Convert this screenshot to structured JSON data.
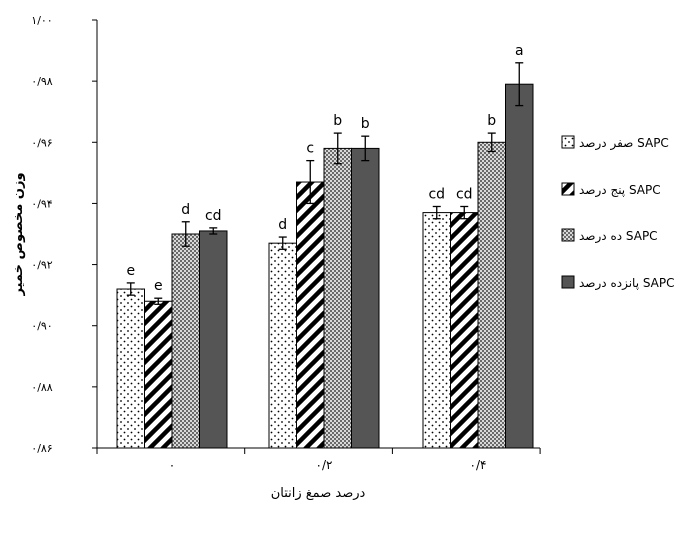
{
  "colors": {
    "axis": "#000000",
    "bar_stroke": "#000000",
    "series_fill": [
      "#ffffff",
      "#ffffff",
      "#bdbdbd",
      "#555555"
    ],
    "pattern": [
      "dots",
      "diagonal-stripes",
      "checker",
      "solid"
    ]
  },
  "chart_data": {
    "type": "bar",
    "title": "",
    "xlabel": "درصد صمغ زانتان",
    "ylabel": "وزن مخصوص خمیر",
    "ylim": [
      0.86,
      1.0
    ],
    "yticks": [
      {
        "value": 0.86,
        "label": "۰/۸۶"
      },
      {
        "value": 0.88,
        "label": "۰/۸۸"
      },
      {
        "value": 0.9,
        "label": "۰/۹۰"
      },
      {
        "value": 0.92,
        "label": "۰/۹۲"
      },
      {
        "value": 0.94,
        "label": "۰/۹۴"
      },
      {
        "value": 0.96,
        "label": "۰/۹۶"
      },
      {
        "value": 0.98,
        "label": "۰/۹۸"
      },
      {
        "value": 1.0,
        "label": "۱/۰۰"
      }
    ],
    "categories": [
      "۰",
      "۰/۲",
      "۰/۴"
    ],
    "series": [
      {
        "name": "صفر درصد SAPC",
        "values": [
          0.912,
          0.927,
          0.937
        ],
        "errors": [
          0.002,
          0.002,
          0.002
        ],
        "letters": [
          "e",
          "d",
          "cd"
        ]
      },
      {
        "name": "پنج درصد SAPC",
        "values": [
          0.908,
          0.947,
          0.937
        ],
        "errors": [
          0.001,
          0.007,
          0.002
        ],
        "letters": [
          "e",
          "c",
          "cd"
        ]
      },
      {
        "name": "ده درصد SAPC",
        "values": [
          0.93,
          0.958,
          0.96
        ],
        "errors": [
          0.004,
          0.005,
          0.003
        ],
        "letters": [
          "d",
          "b",
          "b"
        ]
      },
      {
        "name": "پانزده درصد SAPC",
        "values": [
          0.931,
          0.958,
          0.979
        ],
        "errors": [
          0.001,
          0.004,
          0.007
        ],
        "letters": [
          "cd",
          "b",
          "a"
        ]
      }
    ],
    "grid": false,
    "legend_position": "right"
  }
}
